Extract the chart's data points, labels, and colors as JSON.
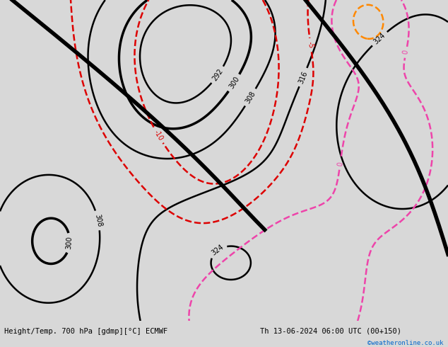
{
  "title_left": "Height/Temp. 700 hPa [gdmp][°C] ECMWF",
  "title_right": "Th 13-06-2024 06:00 UTC (00+150)",
  "credit": "©weatheronline.co.uk",
  "credit_color": "#0066cc",
  "bg_color": "#d8d8d8",
  "land_color_green": "#b8dfa0",
  "land_color_gray": "#b0b0b0",
  "sea_color": "#d8d8d8",
  "bottom_bar_color": "#d0d0d0",
  "border_color": "#888888",
  "contour_height_color": "#000000",
  "contour_temp_neg_color": "#dd0000",
  "contour_temp_zero_color": "#ee44aa",
  "contour_temp_pos_color": "#ff8800",
  "extent": [
    -55,
    55,
    25,
    78
  ],
  "height_levels": [
    292,
    300,
    308,
    316,
    324
  ],
  "temp_neg_levels": [
    -10,
    -5
  ],
  "temp_zero_levels": [
    0
  ],
  "temp_pos_levels": [
    5
  ]
}
